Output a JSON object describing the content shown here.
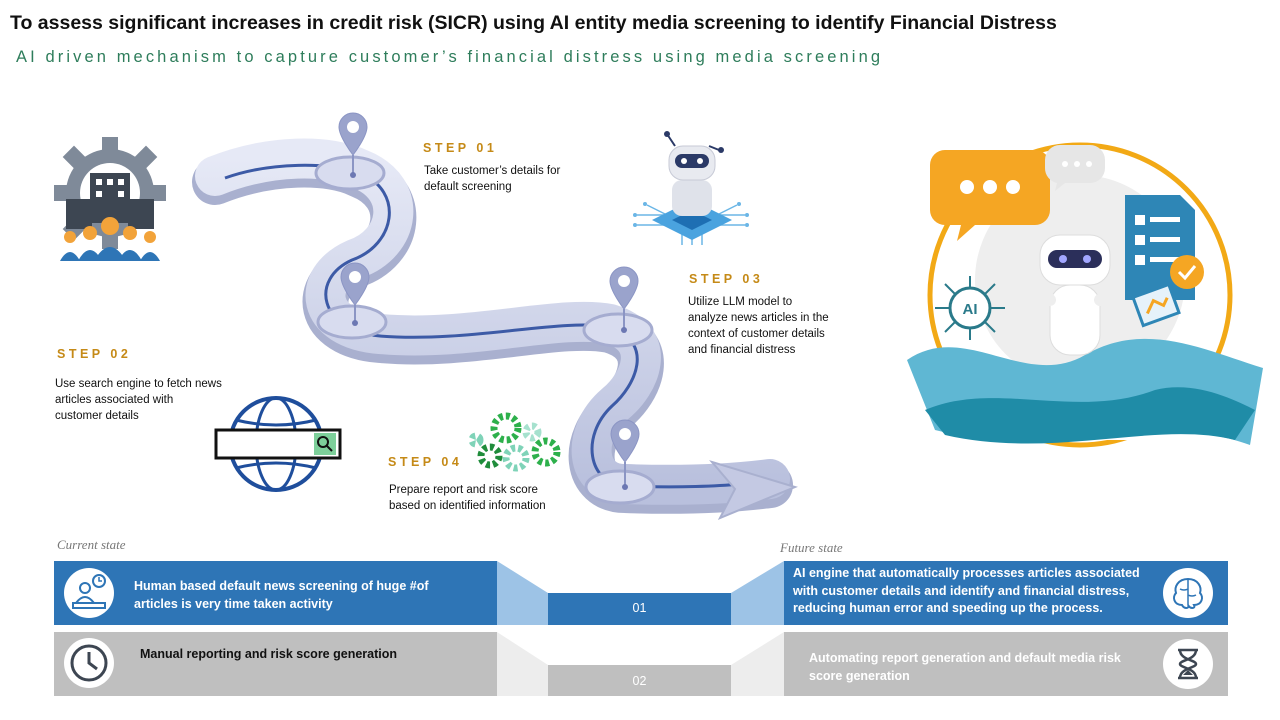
{
  "header": {
    "title": "To assess significant increases in credit risk (SICR) using AI entity media screening to identify Financial Distress",
    "subtitle": "AI driven mechanism to capture customer’s financial distress using media screening"
  },
  "steps": [
    {
      "label": "STEP 01",
      "desc_lines": [
        "Take customer’s details for",
        "default screening"
      ]
    },
    {
      "label": "STEP 02",
      "desc_lines": [
        "Use search engine to fetch news",
        "articles associated with",
        "customer details"
      ]
    },
    {
      "label": "STEP 03",
      "desc_lines": [
        "Utilize LLM model to",
        "analyze news articles in the",
        "context of customer details",
        "and financial distress"
      ]
    },
    {
      "label": "STEP 04",
      "desc_lines": [
        "Prepare report and risk score",
        "based on identified information"
      ]
    }
  ],
  "states": {
    "current": "Current state",
    "future": "Future state"
  },
  "comparison": [
    {
      "number": "01",
      "current_lines": [
        "Human based default news screening of huge #of",
        "articles is very time taken activity"
      ],
      "future_lines": [
        "AI engine that automatically processes articles associated",
        "with customer details  and identify and financial distress,",
        "reducing human error and speeding up the process."
      ],
      "current_icon": "person-at-desk-icon",
      "future_icon": "brain-icon"
    },
    {
      "number": "02",
      "current_lines": [
        "Manual reporting and risk score generation"
      ],
      "future_lines": [
        "Automating report generation and default media risk",
        "score generation"
      ],
      "current_icon": "clock-icon",
      "future_icon": "hourglass-icon"
    }
  ],
  "colors": {
    "accent_blue": "#2e75b6",
    "band_gray": "#bfbfbf",
    "step_gold": "#c58a17",
    "subtitle_green": "#2e7d5b"
  }
}
